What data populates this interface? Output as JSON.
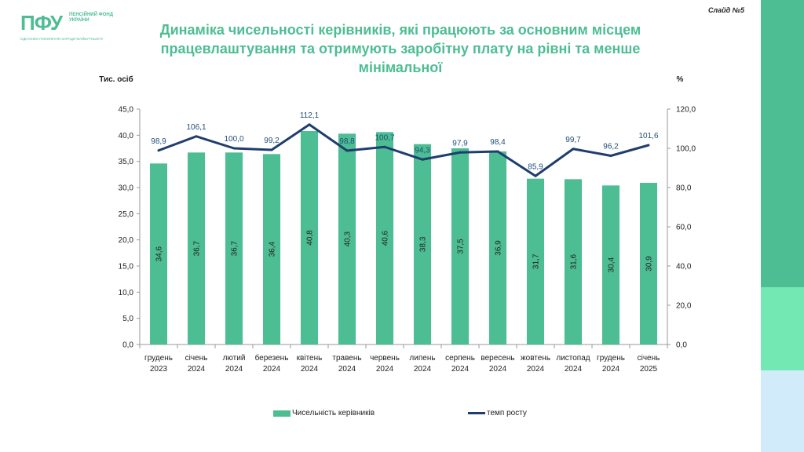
{
  "header": {
    "logo_mark": "ПФУ",
    "logo_name": "ПЕНСІЙНИЙ ФОНД УКРАЇНИ",
    "logo_tagline": "ЄДНАЄМО ПОКОЛІННЯ ЗАРАДИ МАЙБУТНЬОГО",
    "slide_number": "Слайд №5",
    "title_line1": "Динаміка чисельності керівників, які працюють за основним місцем",
    "title_line2": "працевлаштування та отримують заробітну плату на рівні та менше мінімальної"
  },
  "colors": {
    "bar": "#4dbd93",
    "line": "#1f3e6e",
    "stripe_top": "#4dbd93",
    "stripe_mid": "#74e8b2",
    "stripe_bottom": "#d2ebfb"
  },
  "chart_data": {
    "type": "bar+line",
    "title": "",
    "ylabel_left": "Тис. осіб",
    "ylabel_right": "%",
    "ylim_left": [
      0,
      45
    ],
    "ylim_right": [
      0,
      120
    ],
    "yticks_left": [
      "0,0",
      "5,0",
      "10,0",
      "15,0",
      "20,0",
      "25,0",
      "30,0",
      "35,0",
      "40,0",
      "45,0"
    ],
    "yticks_right": [
      "0,0",
      "20,0",
      "40,0",
      "60,0",
      "80,0",
      "100,0",
      "120,0"
    ],
    "categories": [
      [
        "грудень",
        "2023"
      ],
      [
        "січень",
        "2024"
      ],
      [
        "лютий",
        "2024"
      ],
      [
        "березень",
        "2024"
      ],
      [
        "квітень",
        "2024"
      ],
      [
        "травень",
        "2024"
      ],
      [
        "червень",
        "2024"
      ],
      [
        "липень",
        "2024"
      ],
      [
        "серпень",
        "2024"
      ],
      [
        "вересень",
        "2024"
      ],
      [
        "жовтень",
        "2024"
      ],
      [
        "листопад",
        "2024"
      ],
      [
        "грудень",
        "2024"
      ],
      [
        "січень",
        "2025"
      ]
    ],
    "series": [
      {
        "name": "Чисельність керівників",
        "type": "bar",
        "axis": "left",
        "values": [
          34.6,
          36.7,
          36.7,
          36.4,
          40.8,
          40.3,
          40.6,
          38.3,
          37.5,
          36.9,
          31.7,
          31.6,
          30.4,
          30.9
        ],
        "labels": [
          "34,6",
          "36,7",
          "36,7",
          "36,4",
          "40,8",
          "40,3",
          "40,6",
          "38,3",
          "37,5",
          "36,9",
          "31,7",
          "31,6",
          "30,4",
          "30,9"
        ]
      },
      {
        "name": "темп росту",
        "type": "line",
        "axis": "right",
        "values": [
          98.9,
          106.1,
          100.0,
          99.2,
          112.1,
          98.8,
          100.7,
          94.3,
          97.9,
          98.4,
          85.9,
          99.7,
          96.2,
          101.6
        ],
        "labels": [
          "98,9",
          "106,1",
          "100,0",
          "99,2",
          "112,1",
          "98,8",
          "100,7",
          "94,3",
          "97,9",
          "98,4",
          "85,9",
          "99,7",
          "96,2",
          "101,6"
        ]
      }
    ],
    "legend_position": "bottom",
    "grid": false
  }
}
